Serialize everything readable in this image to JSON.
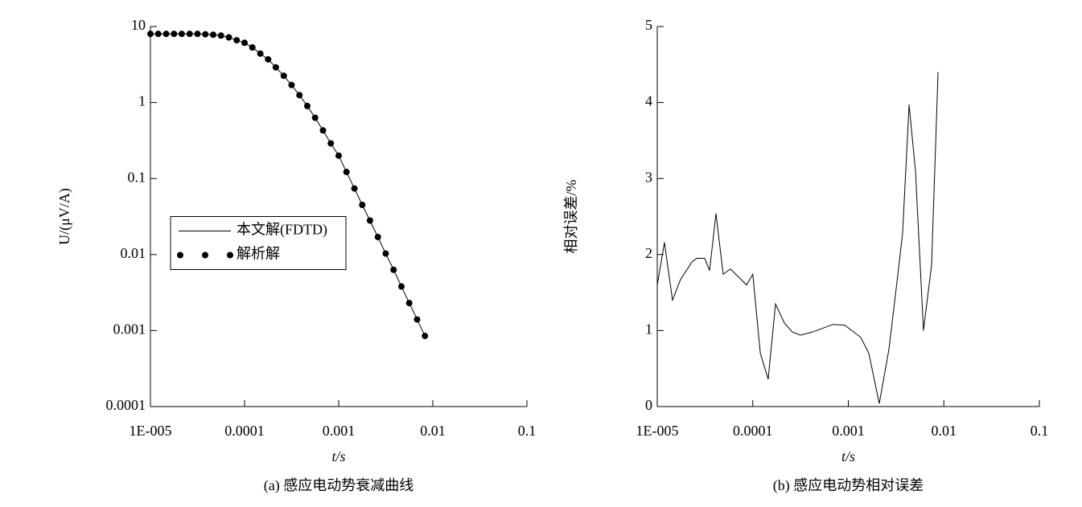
{
  "chart_data": [
    {
      "type": "line",
      "caption": "(a) 感应电动势衰减曲线",
      "xlabel": "t/s",
      "ylabel": "U/(μV/A)",
      "xscale": "log",
      "yscale": "log",
      "legend": "center-left",
      "xlim": [
        1e-05,
        0.1
      ],
      "ylim": [
        0.0001,
        10
      ],
      "xticks": [
        {
          "value": 1e-05,
          "label": "1E-005"
        },
        0.0001,
        0.001,
        0.01,
        0.1
      ],
      "yticks": [
        0.0001,
        0.001,
        0.01,
        0.1,
        1,
        10
      ],
      "x": [
        1e-05,
        1.21e-05,
        1.47e-05,
        1.78e-05,
        2.15e-05,
        2.61e-05,
        3.16e-05,
        3.83e-05,
        4.64e-05,
        5.62e-05,
        6.81e-05,
        8.25e-05,
        0.0001,
        0.000121,
        0.000147,
        0.000178,
        0.000215,
        0.000261,
        0.000316,
        0.000383,
        0.000464,
        0.000562,
        0.000681,
        0.000825,
        0.001,
        0.00121,
        0.00147,
        0.00178,
        0.00215,
        0.00261,
        0.00316,
        0.00383,
        0.00464,
        0.00562,
        0.00681,
        0.00825
      ],
      "series": [
        {
          "name": "本文解(FDTD)",
          "style": "line",
          "color": "#000000",
          "values": [
            8,
            8,
            8,
            8,
            8,
            8,
            8,
            7.9,
            7.8,
            7.6,
            7.2,
            6.6,
            6.1,
            5.3,
            4.4,
            3.7,
            2.9,
            2.25,
            1.7,
            1.25,
            0.9,
            0.63,
            0.43,
            0.29,
            0.2,
            0.122,
            0.074,
            0.045,
            0.028,
            0.017,
            0.0103,
            0.0063,
            0.0038,
            0.0023,
            0.0014,
            0.00085
          ]
        },
        {
          "name": "解析解",
          "style": "markers",
          "color": "#000000",
          "values": [
            8,
            8,
            8,
            8,
            8,
            8,
            8,
            7.9,
            7.8,
            7.6,
            7.2,
            6.6,
            6.1,
            5.3,
            4.4,
            3.7,
            2.9,
            2.25,
            1.7,
            1.25,
            0.9,
            0.63,
            0.43,
            0.29,
            0.2,
            0.122,
            0.074,
            0.045,
            0.028,
            0.017,
            0.0103,
            0.0063,
            0.0038,
            0.0023,
            0.0014,
            0.00085
          ]
        }
      ]
    },
    {
      "type": "line",
      "caption": "(b) 感应电动势相对误差",
      "xlabel": "t/s",
      "ylabel": "相对误差/%",
      "xscale": "log",
      "yscale": "linear",
      "xlim": [
        1e-05,
        0.1
      ],
      "ylim": [
        0,
        5
      ],
      "xticks": [
        {
          "value": 1e-05,
          "label": "1E-005"
        },
        0.0001,
        0.001,
        0.01,
        0.1
      ],
      "yticks": [
        0,
        1,
        2,
        3,
        4,
        5
      ],
      "x": [
        1e-05,
        1.19e-05,
        1.445e-05,
        1.75e-05,
        2.3e-05,
        2.59e-05,
        3.14e-05,
        3.53e-05,
        4.12e-05,
        4.9e-05,
        5.84e-05,
        8.6e-05,
        0.0001,
        0.00012,
        0.000145,
        0.000173,
        0.000214,
        0.00026,
        0.000316,
        0.00042,
        0.00069,
        0.00092,
        0.00135,
        0.00164,
        0.00211,
        0.00266,
        0.00324,
        0.0037,
        0.00433,
        0.00505,
        0.00612,
        0.00744,
        0.0087
      ],
      "series": [
        {
          "name": "相对误差",
          "style": "line",
          "color": "#000000",
          "values": [
            1.6,
            2.16,
            1.4,
            1.67,
            1.9,
            1.95,
            1.95,
            1.79,
            2.54,
            1.74,
            1.81,
            1.6,
            1.74,
            0.7,
            0.36,
            1.35,
            1.1,
            0.98,
            0.94,
            0.98,
            1.08,
            1.07,
            0.91,
            0.7,
            0.04,
            0.75,
            1.65,
            2.28,
            3.97,
            3.1,
            1.0,
            1.86,
            4.4
          ]
        }
      ]
    }
  ]
}
